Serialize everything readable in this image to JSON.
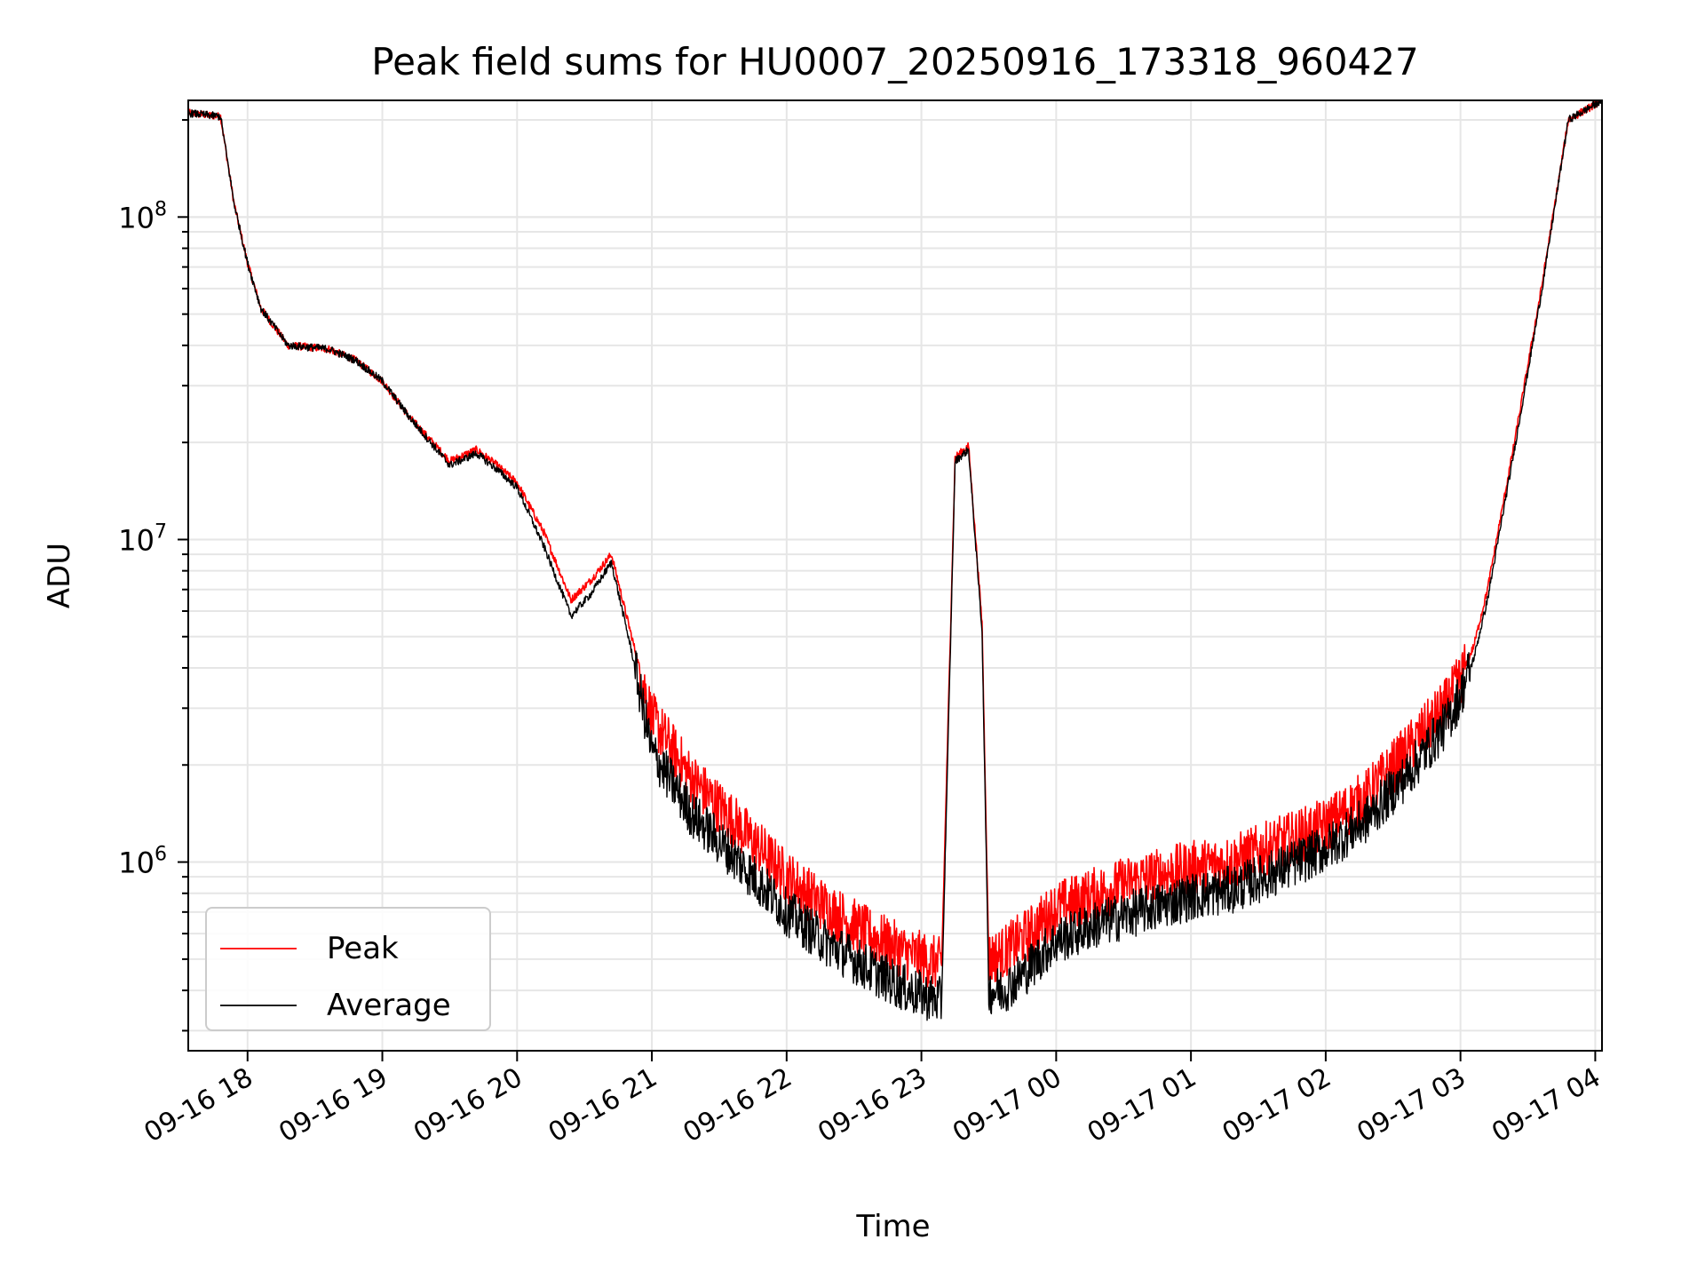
{
  "chart_data": {
    "type": "line",
    "title": "Peak field sums for HU0007_20250916_173318_960427",
    "xlabel": "Time",
    "ylabel": "ADU",
    "yscale": "log",
    "x_unit": "hours since 09-16 17:00",
    "xlim": [
      0.56,
      11.05
    ],
    "ylim": [
      260000,
      230000000
    ],
    "x_ticks": [
      {
        "value": 1,
        "label": "09-16 18"
      },
      {
        "value": 2,
        "label": "09-16 19"
      },
      {
        "value": 3,
        "label": "09-16 20"
      },
      {
        "value": 4,
        "label": "09-16 21"
      },
      {
        "value": 5,
        "label": "09-16 22"
      },
      {
        "value": 6,
        "label": "09-16 23"
      },
      {
        "value": 7,
        "label": "09-17 00"
      },
      {
        "value": 8,
        "label": "09-17 01"
      },
      {
        "value": 9,
        "label": "09-17 02"
      },
      {
        "value": 10,
        "label": "09-17 03"
      },
      {
        "value": 11,
        "label": "09-17 04"
      }
    ],
    "y_major_ticks": [
      {
        "value": 1000000,
        "base": "10",
        "exp": "6"
      },
      {
        "value": 10000000,
        "base": "10",
        "exp": "7"
      },
      {
        "value": 100000000,
        "base": "10",
        "exp": "8"
      }
    ],
    "grid": true,
    "legend_position": "lower-left",
    "series": [
      {
        "name": "Peak",
        "color": "#ff0000",
        "x": [
          0.56,
          0.8,
          0.9,
          1.0,
          1.1,
          1.3,
          1.6,
          1.8,
          2.0,
          2.2,
          2.5,
          2.7,
          2.85,
          3.0,
          3.2,
          3.4,
          3.55,
          3.7,
          3.85,
          4.0,
          4.3,
          4.6,
          5.0,
          5.3,
          5.6,
          5.9,
          6.15,
          6.25,
          6.35,
          6.45,
          6.5,
          6.6,
          6.7,
          6.8,
          6.9,
          7.0,
          7.3,
          7.6,
          8.0,
          8.3,
          8.6,
          9.0,
          9.3,
          9.6,
          9.9,
          10.0,
          10.1,
          10.2,
          10.4,
          10.6,
          10.8,
          11.05
        ],
        "values": [
          210000000,
          205000000,
          110000000,
          72000000,
          52000000,
          40000000,
          39000000,
          36000000,
          31000000,
          24000000,
          17500000,
          19000000,
          17000000,
          15000000,
          10500000,
          6500000,
          7500000,
          9000000,
          5000000,
          2800000,
          1800000,
          1350000,
          900000,
          720000,
          600000,
          520000,
          480000,
          18000000,
          19500000,
          5500000,
          500000,
          520000,
          560000,
          600000,
          660000,
          720000,
          800000,
          880000,
          960000,
          1000000,
          1120000,
          1300000,
          1600000,
          2200000,
          3100000,
          3700000,
          4700000,
          7000000,
          20000000,
          60000000,
          200000000,
          230000000
        ]
      },
      {
        "name": "Average",
        "color": "#000000",
        "x": [
          0.56,
          0.8,
          0.9,
          1.0,
          1.1,
          1.3,
          1.6,
          1.8,
          2.0,
          2.2,
          2.5,
          2.7,
          2.85,
          3.0,
          3.2,
          3.4,
          3.55,
          3.7,
          3.85,
          4.0,
          4.3,
          4.6,
          5.0,
          5.3,
          5.6,
          5.9,
          6.15,
          6.25,
          6.35,
          6.45,
          6.5,
          6.6,
          6.7,
          6.8,
          6.9,
          7.0,
          7.3,
          7.6,
          8.0,
          8.3,
          8.6,
          9.0,
          9.3,
          9.6,
          9.9,
          10.0,
          10.1,
          10.2,
          10.4,
          10.6,
          10.8,
          11.05
        ],
        "values": [
          210000000,
          205000000,
          110000000,
          72000000,
          52000000,
          40000000,
          39000000,
          36000000,
          31000000,
          24000000,
          17000000,
          18500000,
          16500000,
          14500000,
          9500000,
          5800000,
          6800000,
          8500000,
          4500000,
          2200000,
          1400000,
          1050000,
          700000,
          560000,
          470000,
          400000,
          370000,
          17500000,
          19000000,
          5200000,
          400000,
          400000,
          430000,
          470000,
          520000,
          570000,
          640000,
          700000,
          780000,
          820000,
          920000,
          1100000,
          1350000,
          1850000,
          2700000,
          3300000,
          4300000,
          6500000,
          19000000,
          58000000,
          200000000,
          230000000
        ]
      }
    ]
  }
}
